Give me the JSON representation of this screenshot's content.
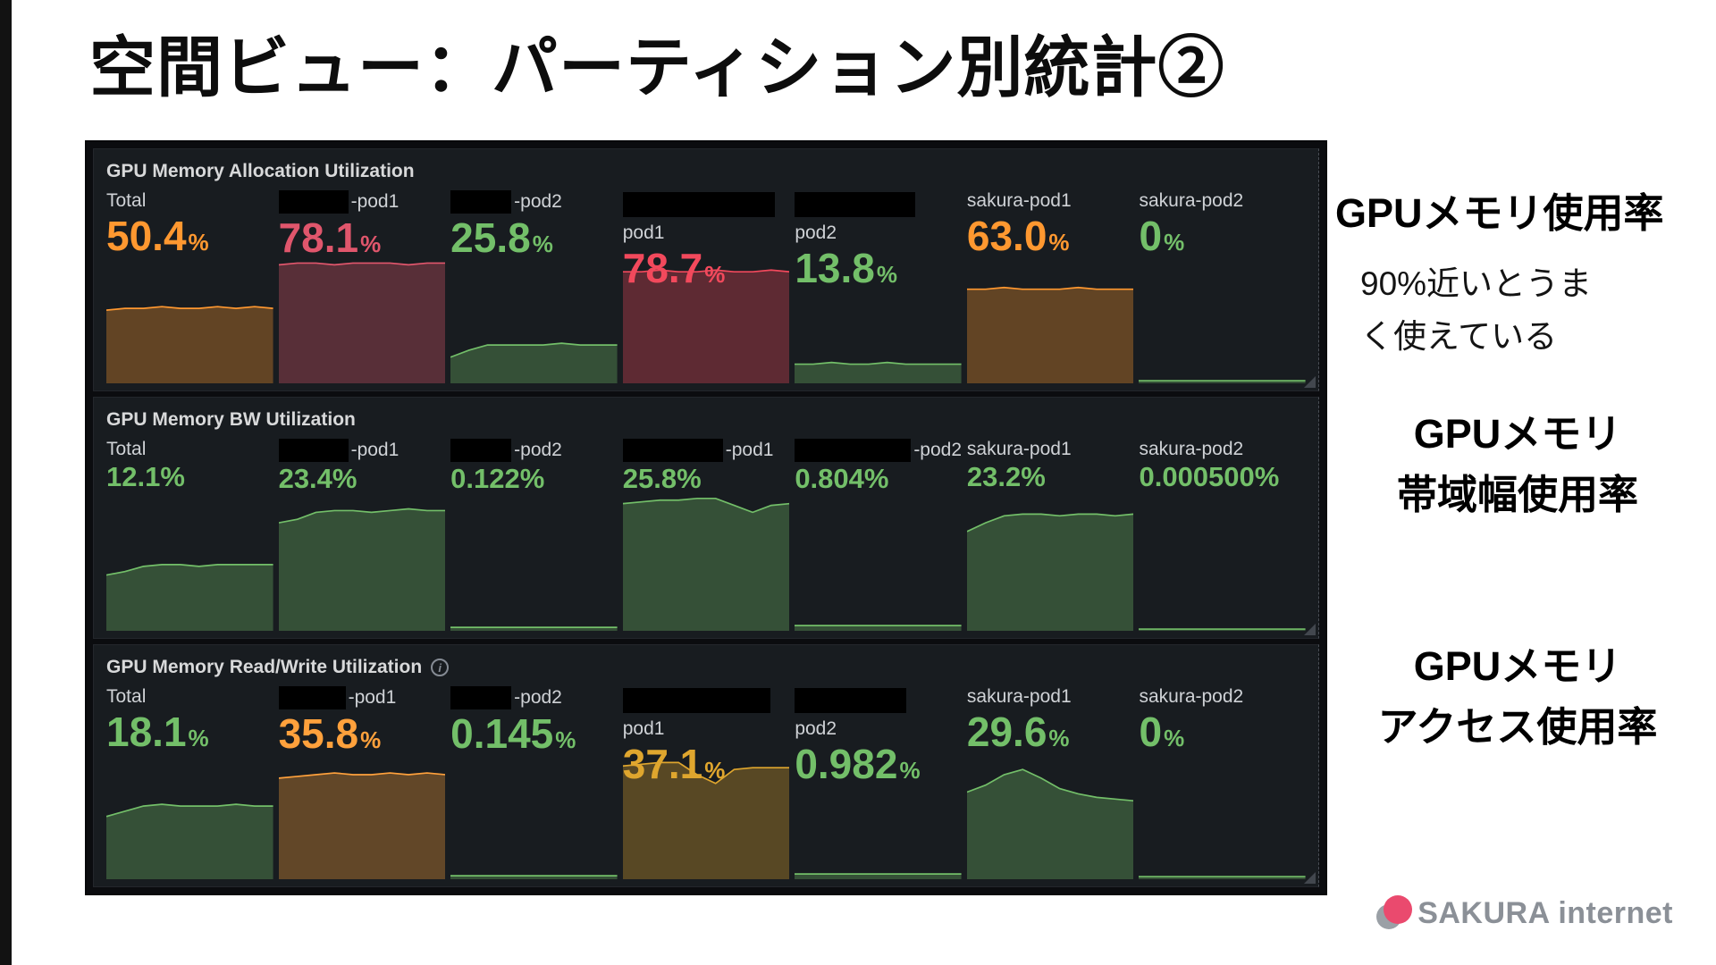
{
  "slide": {
    "title": "空間ビュー：パーティション別統計②",
    "annotations": {
      "usage_title": "GPUメモリ使用率",
      "usage_note_line1": "90%近いとうま",
      "usage_note_line2": "く使えている",
      "bw_line1": "GPUメモリ",
      "bw_line2": "帯域幅使用率",
      "access_line1": "GPUメモリ",
      "access_line2": "アクセス使用率"
    },
    "logo_text": "SAKURA internet"
  },
  "colors": {
    "orange": "#ff9830",
    "red_bright": "#f2495c",
    "red_muted": "#e0566c",
    "green": "#73bf69",
    "yellow": "#dfa62e",
    "amber": "#ffa13c"
  },
  "dashboard": {
    "panels": [
      {
        "title": "GPU Memory Allocation Utilization",
        "info_icon": false,
        "value_size": "large",
        "cells": [
          {
            "label": "Total",
            "redact": "none",
            "redact_w": 0,
            "value": "50.4",
            "unit": "%",
            "color": "#ff9830",
            "spark": [
              0.42,
              0.43,
              0.43,
              0.44,
              0.43,
              0.43,
              0.44,
              0.43,
              0.44,
              0.43
            ]
          },
          {
            "label": "-pod1",
            "redact": "inline",
            "redact_w": 78,
            "value": "78.1",
            "unit": "%",
            "color": "#e0566c",
            "spark": [
              0.68,
              0.69,
              0.69,
              0.68,
              0.69,
              0.69,
              0.69,
              0.68,
              0.69,
              0.69
            ]
          },
          {
            "label": "-pod2",
            "redact": "inline",
            "redact_w": 68,
            "value": "25.8",
            "unit": "%",
            "color": "#73bf69",
            "spark": [
              0.15,
              0.19,
              0.22,
              0.22,
              0.22,
              0.22,
              0.23,
              0.22,
              0.22,
              0.22
            ]
          },
          {
            "label": "pod1",
            "redact": "above",
            "redact_w": 170,
            "value": "78.7",
            "unit": "%",
            "color": "#f2495c",
            "spark": [
              0.64,
              0.64,
              0.65,
              0.64,
              0.64,
              0.65,
              0.64,
              0.64,
              0.65,
              0.64
            ]
          },
          {
            "label": "pod2",
            "redact": "above",
            "redact_w": 135,
            "value": "13.8",
            "unit": "%",
            "color": "#73bf69",
            "spark": [
              0.11,
              0.11,
              0.12,
              0.11,
              0.11,
              0.12,
              0.11,
              0.11,
              0.11,
              0.11
            ]
          },
          {
            "label": "sakura-pod1",
            "redact": "none",
            "redact_w": 0,
            "value": "63.0",
            "unit": "%",
            "color": "#ff9830",
            "spark": [
              0.54,
              0.54,
              0.55,
              0.54,
              0.54,
              0.54,
              0.55,
              0.54,
              0.54,
              0.54
            ]
          },
          {
            "label": "sakura-pod2",
            "redact": "none",
            "redact_w": 0,
            "value": "0",
            "unit": "%",
            "color": "#73bf69",
            "spark": [
              0.015,
              0.015,
              0.015,
              0.015,
              0.015,
              0.015,
              0.015,
              0.015,
              0.015,
              0.015
            ]
          }
        ]
      },
      {
        "title": "GPU Memory BW Utilization",
        "info_icon": false,
        "value_size": "small",
        "cells": [
          {
            "label": "Total",
            "redact": "none",
            "redact_w": 0,
            "value": "12.1",
            "unit": "%",
            "color": "#73bf69",
            "spark": [
              0.32,
              0.34,
              0.37,
              0.38,
              0.38,
              0.37,
              0.38,
              0.38,
              0.38,
              0.38
            ]
          },
          {
            "label": "-pod1",
            "redact": "inline",
            "redact_w": 78,
            "value": "23.4",
            "unit": "%",
            "color": "#73bf69",
            "spark": [
              0.62,
              0.64,
              0.68,
              0.69,
              0.69,
              0.68,
              0.69,
              0.7,
              0.69,
              0.69
            ]
          },
          {
            "label": "-pod2",
            "redact": "inline",
            "redact_w": 68,
            "value": "0.122",
            "unit": "%",
            "color": "#73bf69",
            "spark": [
              0.02,
              0.02,
              0.02,
              0.02,
              0.02,
              0.02,
              0.02,
              0.02,
              0.02,
              0.02
            ]
          },
          {
            "label": "-pod1",
            "redact": "inline",
            "redact_w": 112,
            "value": "25.8",
            "unit": "%",
            "color": "#73bf69",
            "spark": [
              0.73,
              0.74,
              0.75,
              0.75,
              0.76,
              0.76,
              0.72,
              0.68,
              0.72,
              0.73
            ]
          },
          {
            "label": "-pod2",
            "redact": "inline",
            "redact_w": 130,
            "value": "0.804",
            "unit": "%",
            "color": "#73bf69",
            "spark": [
              0.03,
              0.03,
              0.03,
              0.03,
              0.03,
              0.03,
              0.03,
              0.03,
              0.03,
              0.03
            ]
          },
          {
            "label": "sakura-pod1",
            "redact": "none",
            "redact_w": 0,
            "value": "23.2",
            "unit": "%",
            "color": "#73bf69",
            "spark": [
              0.57,
              0.62,
              0.66,
              0.67,
              0.67,
              0.66,
              0.67,
              0.67,
              0.66,
              0.67
            ]
          },
          {
            "label": "sakura-pod2",
            "redact": "none",
            "redact_w": 0,
            "value": "0.000500",
            "unit": "%",
            "color": "#73bf69",
            "spark": [
              0.01,
              0.01,
              0.01,
              0.01,
              0.01,
              0.01,
              0.01,
              0.01,
              0.01,
              0.01
            ]
          }
        ]
      },
      {
        "title": "GPU Memory Read/Write Utilization",
        "info_icon": true,
        "value_size": "large",
        "cells": [
          {
            "label": "Total",
            "redact": "none",
            "redact_w": 0,
            "value": "18.1",
            "unit": "%",
            "color": "#73bf69",
            "spark": [
              0.36,
              0.39,
              0.42,
              0.43,
              0.42,
              0.42,
              0.42,
              0.43,
              0.42,
              0.42
            ]
          },
          {
            "label": "-pod1",
            "redact": "inline",
            "redact_w": 75,
            "value": "35.8",
            "unit": "%",
            "color": "#ffa13c",
            "spark": [
              0.58,
              0.59,
              0.6,
              0.61,
              0.6,
              0.6,
              0.61,
              0.6,
              0.61,
              0.6
            ]
          },
          {
            "label": "-pod2",
            "redact": "inline",
            "redact_w": 68,
            "value": "0.145",
            "unit": "%",
            "color": "#73bf69",
            "spark": [
              0.02,
              0.02,
              0.02,
              0.02,
              0.02,
              0.02,
              0.02,
              0.02,
              0.02,
              0.02
            ]
          },
          {
            "label": "pod1",
            "redact": "above",
            "redact_w": 165,
            "value": "37.1",
            "unit": "%",
            "color": "#dfa62e",
            "spark": [
              0.65,
              0.66,
              0.67,
              0.67,
              0.6,
              0.55,
              0.63,
              0.64,
              0.64,
              0.64
            ]
          },
          {
            "label": "pod2",
            "redact": "above",
            "redact_w": 125,
            "value": "0.982",
            "unit": "%",
            "color": "#73bf69",
            "spark": [
              0.03,
              0.03,
              0.03,
              0.03,
              0.03,
              0.03,
              0.03,
              0.03,
              0.03,
              0.03
            ]
          },
          {
            "label": "sakura-pod1",
            "redact": "none",
            "redact_w": 0,
            "value": "29.6",
            "unit": "%",
            "color": "#73bf69",
            "spark": [
              0.5,
              0.54,
              0.6,
              0.63,
              0.58,
              0.52,
              0.49,
              0.47,
              0.46,
              0.45
            ]
          },
          {
            "label": "sakura-pod2",
            "redact": "none",
            "redact_w": 0,
            "value": "0",
            "unit": "%",
            "color": "#73bf69",
            "spark": [
              0.015,
              0.015,
              0.015,
              0.015,
              0.015,
              0.015,
              0.015,
              0.015,
              0.015,
              0.015
            ]
          }
        ]
      }
    ]
  },
  "chart_data": [
    {
      "type": "area",
      "title": "GPU Memory Allocation Utilization",
      "categories": [
        "Total",
        "(redacted)-pod1",
        "(redacted)-pod2",
        "pod1",
        "pod2",
        "sakura-pod1",
        "sakura-pod2"
      ],
      "values": [
        50.4,
        78.1,
        25.8,
        78.7,
        13.8,
        63.0,
        0
      ],
      "xlabel": "",
      "ylabel": "%",
      "ylim": [
        0,
        100
      ],
      "legend": "none",
      "grid": false
    },
    {
      "type": "area",
      "title": "GPU Memory BW Utilization",
      "categories": [
        "Total",
        "(redacted)-pod1",
        "(redacted)-pod2",
        "(redacted)-pod1",
        "(redacted)-pod2",
        "sakura-pod1",
        "sakura-pod2"
      ],
      "values": [
        12.1,
        23.4,
        0.122,
        25.8,
        0.804,
        23.2,
        0.0005
      ],
      "xlabel": "",
      "ylabel": "%",
      "ylim": [
        0,
        100
      ],
      "legend": "none",
      "grid": false
    },
    {
      "type": "area",
      "title": "GPU Memory Read/Write Utilization",
      "categories": [
        "Total",
        "(redacted)-pod1",
        "(redacted)-pod2",
        "pod1",
        "pod2",
        "sakura-pod1",
        "sakura-pod2"
      ],
      "values": [
        18.1,
        35.8,
        0.145,
        37.1,
        0.982,
        29.6,
        0
      ],
      "xlabel": "",
      "ylabel": "%",
      "ylim": [
        0,
        100
      ],
      "legend": "none",
      "grid": false
    }
  ]
}
